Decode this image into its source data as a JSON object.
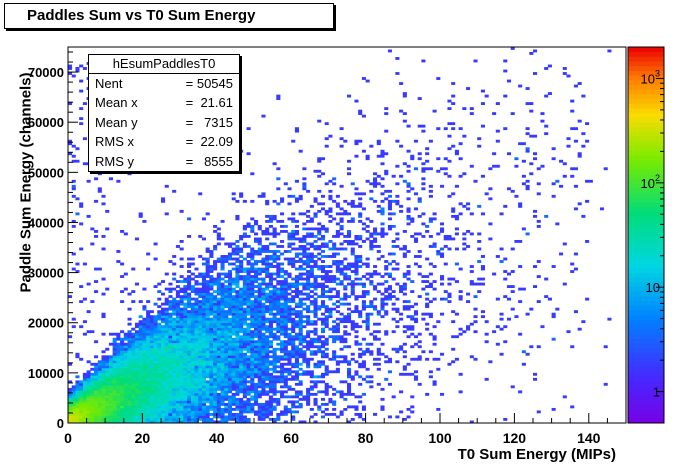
{
  "header": {
    "title": "Paddles Sum vs T0 Sum Energy"
  },
  "stats": {
    "name": "hEsumPaddlesT0",
    "rows": [
      {
        "label": "Nent",
        "value": "= 50545"
      },
      {
        "label": "Mean x",
        "value": "=  21.61"
      },
      {
        "label": "Mean y",
        "value": "=   7315"
      },
      {
        "label": "RMS x",
        "value": "=  22.09"
      },
      {
        "label": "RMS y",
        "value": "=   8555"
      }
    ]
  },
  "chart_data": {
    "type": "heatmap",
    "title": "Paddles Sum vs T0 Sum Energy",
    "xlabel": "T0 Sum Energy (MIPs)",
    "ylabel": "Paddle Sum Energy (channels)",
    "xlim": [
      0,
      150
    ],
    "ylim": [
      0,
      75000
    ],
    "x_ticks": [
      0,
      20,
      40,
      60,
      80,
      100,
      120,
      140
    ],
    "y_ticks": [
      0,
      10000,
      20000,
      30000,
      40000,
      50000,
      60000,
      70000
    ],
    "y_tick_labels": [
      "0",
      "10000",
      "20000",
      "30000",
      "40000",
      "50000",
      "60000",
      "70000"
    ],
    "z_scale": "log",
    "z_range": [
      0.5,
      2000
    ],
    "colorbar_ticks": [
      {
        "value": 1,
        "label": "1"
      },
      {
        "value": 10,
        "label": "10"
      },
      {
        "value": 100,
        "label": "10",
        "sup": "2"
      },
      {
        "value": 1000,
        "label": "10",
        "sup": "3"
      }
    ],
    "entries": 50545,
    "mean_x": 21.61,
    "mean_y": 7315,
    "rms_x": 22.09,
    "rms_y": 8555,
    "trend": {
      "slope_per_mip": 340,
      "spread_fraction": 0.5
    }
  }
}
